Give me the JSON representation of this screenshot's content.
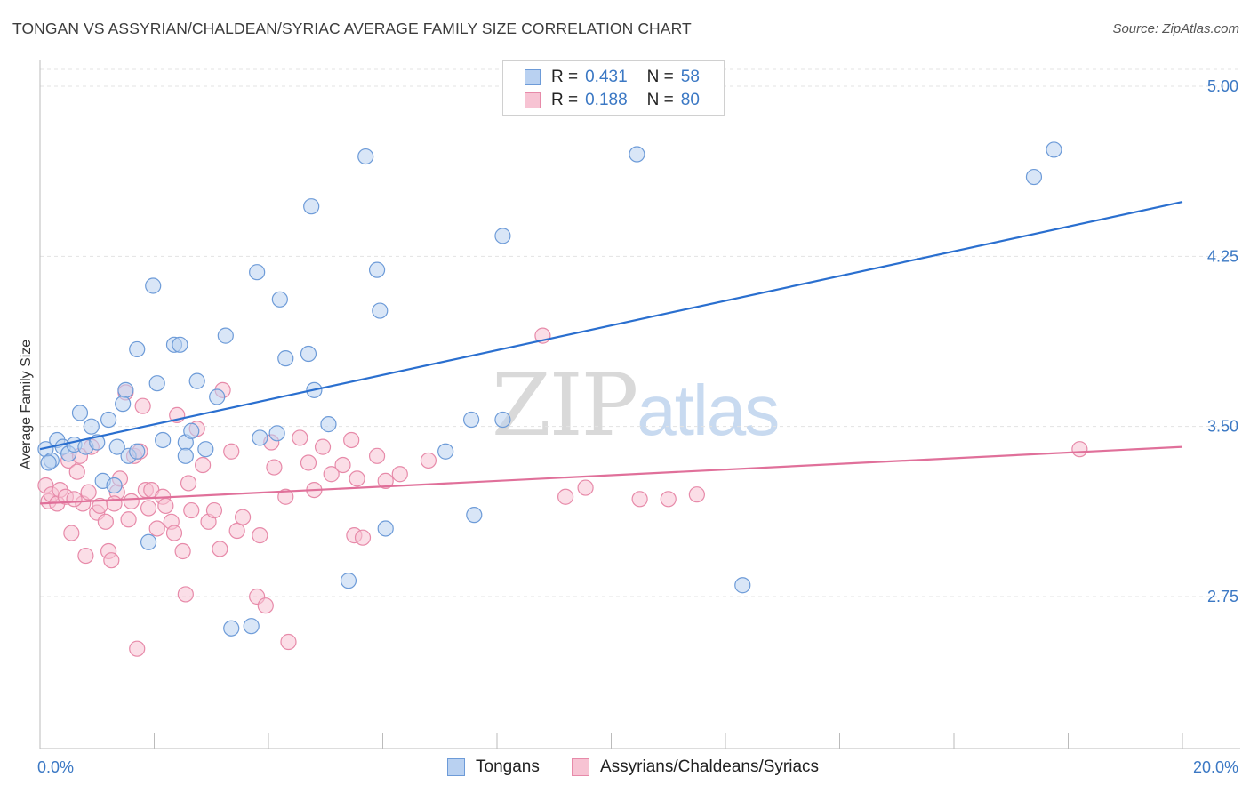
{
  "title": "TONGAN VS ASSYRIAN/CHALDEAN/SYRIAC AVERAGE FAMILY SIZE CORRELATION CHART",
  "source": "Source: ZipAtlas.com",
  "watermark": {
    "zip": "ZIP",
    "atlas": "atlas"
  },
  "legend": {
    "series1": {
      "r_label": "R =",
      "r_value": "0.431",
      "n_label": "N =",
      "n_value": "58"
    },
    "series2": {
      "r_label": "R =",
      "r_value": "0.188",
      "n_label": "N =",
      "n_value": "80"
    }
  },
  "colors": {
    "blue_fill": "#b9d1f1",
    "blue_stroke": "#6d9bd8",
    "blue_line": "#2a6fcf",
    "pink_fill": "#f7c3d3",
    "pink_stroke": "#e78aa9",
    "pink_line": "#e0709a",
    "tick_text": "#3b78c4"
  },
  "chart_data": {
    "type": "scatter",
    "title": "TONGAN VS ASSYRIAN/CHALDEAN/SYRIAC AVERAGE FAMILY SIZE CORRELATION CHART",
    "xlabel": "",
    "ylabel": "Average Family Size",
    "xlim": [
      0,
      20
    ],
    "ylim": [
      2.0,
      5.1
    ],
    "x_tick_labels": [
      "0.0%",
      "20.0%"
    ],
    "y_ticks": [
      2.75,
      3.5,
      4.25,
      5.0
    ],
    "y_tick_labels": [
      "2.75",
      "3.50",
      "4.25",
      "5.00"
    ],
    "grid": true,
    "legend_position": "top-center",
    "series": [
      {
        "name": "Tongans",
        "color": "#6d9bd8",
        "trend": {
          "x": [
            0,
            20
          ],
          "y": [
            3.4,
            4.49
          ]
        },
        "points": [
          [
            0.1,
            3.4
          ],
          [
            0.2,
            3.35
          ],
          [
            0.3,
            3.44
          ],
          [
            0.4,
            3.41
          ],
          [
            0.5,
            3.38
          ],
          [
            0.6,
            3.42
          ],
          [
            0.7,
            3.56
          ],
          [
            0.8,
            3.41
          ],
          [
            0.9,
            3.5
          ],
          [
            1.0,
            3.43
          ],
          [
            1.1,
            3.26
          ],
          [
            1.2,
            3.53
          ],
          [
            1.3,
            3.24
          ],
          [
            1.35,
            3.41
          ],
          [
            1.5,
            3.66
          ],
          [
            1.55,
            3.37
          ],
          [
            1.7,
            3.39
          ],
          [
            1.7,
            3.84
          ],
          [
            1.9,
            2.99
          ],
          [
            1.98,
            4.12
          ],
          [
            2.05,
            3.69
          ],
          [
            2.15,
            3.44
          ],
          [
            2.35,
            3.86
          ],
          [
            2.45,
            3.86
          ],
          [
            2.55,
            3.43
          ],
          [
            2.55,
            3.37
          ],
          [
            2.65,
            3.48
          ],
          [
            2.75,
            3.7
          ],
          [
            2.9,
            3.4
          ],
          [
            3.1,
            3.63
          ],
          [
            3.25,
            3.9
          ],
          [
            3.35,
            2.61
          ],
          [
            3.7,
            2.62
          ],
          [
            3.85,
            3.45
          ],
          [
            3.8,
            4.18
          ],
          [
            4.15,
            3.47
          ],
          [
            4.2,
            4.06
          ],
          [
            4.3,
            3.8
          ],
          [
            4.7,
            3.82
          ],
          [
            4.75,
            4.47
          ],
          [
            4.8,
            3.66
          ],
          [
            5.05,
            3.51
          ],
          [
            5.4,
            2.82
          ],
          [
            5.7,
            4.69
          ],
          [
            5.9,
            4.19
          ],
          [
            5.95,
            4.01
          ],
          [
            6.05,
            3.05
          ],
          [
            7.1,
            3.39
          ],
          [
            7.55,
            3.53
          ],
          [
            7.6,
            3.11
          ],
          [
            8.1,
            4.34
          ],
          [
            8.1,
            3.53
          ],
          [
            10.45,
            4.7
          ],
          [
            12.3,
            2.8
          ],
          [
            17.4,
            4.6
          ],
          [
            17.75,
            4.72
          ],
          [
            0.15,
            3.34
          ],
          [
            1.45,
            3.6
          ]
        ]
      },
      {
        "name": "Assyrians/Chaldeans/Syriacs",
        "color": "#e78aa9",
        "trend": {
          "x": [
            0,
            20
          ],
          "y": [
            3.16,
            3.41
          ]
        },
        "points": [
          [
            0.1,
            3.24
          ],
          [
            0.15,
            3.17
          ],
          [
            0.2,
            3.2
          ],
          [
            0.3,
            3.16
          ],
          [
            0.35,
            3.22
          ],
          [
            0.45,
            3.19
          ],
          [
            0.5,
            3.35
          ],
          [
            0.55,
            3.03
          ],
          [
            0.65,
            3.3
          ],
          [
            0.7,
            3.37
          ],
          [
            0.75,
            3.16
          ],
          [
            0.8,
            2.93
          ],
          [
            0.85,
            3.21
          ],
          [
            0.9,
            3.41
          ],
          [
            1.0,
            3.12
          ],
          [
            1.05,
            3.15
          ],
          [
            1.15,
            3.08
          ],
          [
            1.2,
            2.95
          ],
          [
            1.25,
            2.91
          ],
          [
            1.35,
            3.21
          ],
          [
            1.4,
            3.27
          ],
          [
            1.5,
            3.65
          ],
          [
            1.55,
            3.09
          ],
          [
            1.6,
            3.17
          ],
          [
            1.65,
            3.37
          ],
          [
            1.7,
            2.52
          ],
          [
            1.75,
            3.39
          ],
          [
            1.8,
            3.59
          ],
          [
            1.85,
            3.22
          ],
          [
            1.9,
            3.14
          ],
          [
            1.95,
            3.22
          ],
          [
            2.05,
            3.05
          ],
          [
            2.15,
            3.19
          ],
          [
            2.2,
            3.15
          ],
          [
            2.3,
            3.08
          ],
          [
            2.35,
            3.03
          ],
          [
            2.5,
            2.95
          ],
          [
            2.55,
            2.76
          ],
          [
            2.6,
            3.25
          ],
          [
            2.65,
            3.13
          ],
          [
            2.75,
            3.49
          ],
          [
            2.85,
            3.33
          ],
          [
            2.95,
            3.08
          ],
          [
            3.05,
            3.13
          ],
          [
            3.15,
            2.96
          ],
          [
            3.2,
            3.66
          ],
          [
            3.35,
            3.39
          ],
          [
            3.45,
            3.04
          ],
          [
            3.55,
            3.1
          ],
          [
            3.8,
            2.75
          ],
          [
            3.85,
            3.02
          ],
          [
            3.95,
            2.71
          ],
          [
            4.05,
            3.43
          ],
          [
            4.1,
            3.32
          ],
          [
            4.3,
            3.19
          ],
          [
            4.55,
            3.45
          ],
          [
            4.7,
            3.34
          ],
          [
            4.8,
            3.22
          ],
          [
            4.95,
            3.41
          ],
          [
            5.1,
            3.29
          ],
          [
            5.3,
            3.33
          ],
          [
            5.45,
            3.44
          ],
          [
            5.5,
            3.02
          ],
          [
            5.55,
            3.27
          ],
          [
            5.65,
            3.01
          ],
          [
            5.9,
            3.37
          ],
          [
            6.05,
            3.26
          ],
          [
            6.3,
            3.29
          ],
          [
            6.8,
            3.35
          ],
          [
            8.8,
            3.9
          ],
          [
            9.2,
            3.19
          ],
          [
            9.55,
            3.23
          ],
          [
            10.5,
            3.18
          ],
          [
            11.0,
            3.18
          ],
          [
            11.5,
            3.2
          ],
          [
            18.2,
            3.4
          ],
          [
            4.35,
            2.55
          ],
          [
            0.6,
            3.18
          ],
          [
            1.3,
            3.16
          ],
          [
            2.4,
            3.55
          ]
        ]
      }
    ]
  }
}
